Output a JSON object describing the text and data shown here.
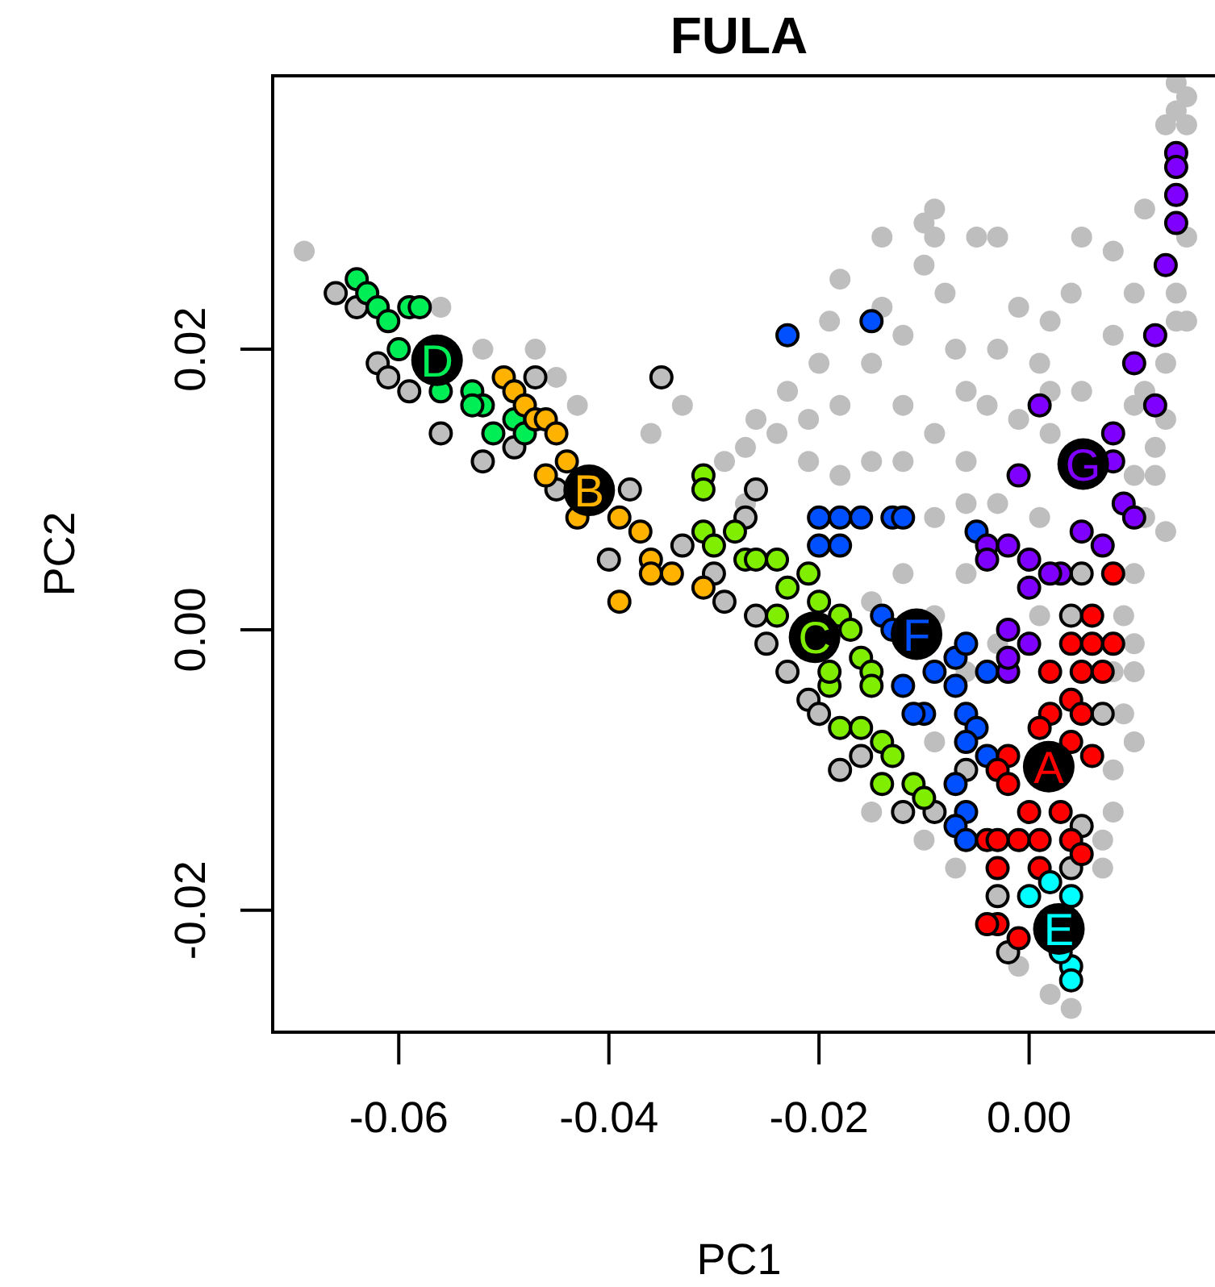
{
  "chart_data": {
    "type": "scatter",
    "title": "FULA",
    "xlabel": "PC1",
    "ylabel": "PC2",
    "xlim": [
      -0.072,
      0.018
    ],
    "ylim": [
      -0.0287,
      0.0395
    ],
    "xticks": [
      -0.06,
      -0.04,
      -0.02,
      {
        "value": 0,
        "label": "0.00"
      }
    ],
    "yticks": [
      -0.02,
      {
        "value": 0,
        "label": "0.00"
      },
      0.02
    ],
    "grid": false,
    "marker": "circle",
    "series": [
      {
        "color": "#bebebe",
        "x": [
          -0.069,
          -0.056,
          -0.052,
          -0.047,
          -0.045,
          -0.043,
          -0.036,
          -0.033,
          -0.027,
          -0.024,
          -0.021,
          -0.018,
          -0.019,
          -0.018,
          -0.014,
          -0.01,
          -0.009,
          -0.01,
          -0.008,
          -0.012,
          -0.007,
          -0.006,
          -0.003,
          -0.001,
          0.001,
          0.002,
          0.004,
          0.005,
          0.008,
          0.01,
          0.011,
          0.013,
          0.014,
          0.015,
          0.015,
          0.015,
          0.013,
          0.012,
          0.011,
          0.01,
          0.01,
          0.009,
          0.008,
          0.007,
          0.004,
          0.002,
          -0.001,
          -0.007,
          -0.01,
          -0.015,
          -0.009,
          -0.006,
          -0.003,
          0.001,
          0.01,
          0.013,
          -0.006,
          -0.009,
          -0.012,
          -0.015,
          -0.027,
          -0.029,
          -0.026,
          -0.023,
          -0.02,
          -0.015,
          -0.012,
          -0.009,
          -0.006,
          -0.003,
          0.001,
          0.01,
          0.002,
          -0.001,
          -0.004,
          -0.012,
          -0.015,
          -0.018,
          -0.009,
          -0.006,
          0.008,
          0.01,
          0.007,
          0.008,
          0.011,
          0.014,
          0.014,
          0.015,
          -0.021,
          -0.014,
          -0.009,
          -0.005,
          -0.003,
          0.002,
          0.005,
          0.008,
          0.012,
          0.014,
          0.01,
          0.009,
          0.013
        ],
        "values": [
          0.027,
          0.023,
          0.02,
          0.02,
          0.018,
          0.016,
          0.014,
          0.016,
          0.013,
          0.014,
          0.015,
          0.016,
          0.022,
          0.025,
          0.028,
          0.029,
          0.03,
          0.026,
          0.024,
          0.021,
          0.02,
          0.017,
          0.02,
          0.023,
          0.019,
          0.022,
          0.024,
          0.028,
          0.027,
          0.024,
          0.03,
          0.036,
          0.037,
          0.036,
          0.028,
          0.022,
          0.019,
          0.013,
          0.008,
          0.004,
          -0.001,
          -0.006,
          -0.01,
          -0.015,
          -0.027,
          -0.026,
          -0.024,
          -0.017,
          -0.015,
          -0.013,
          -0.008,
          -0.003,
          -0.001,
          0.001,
          0.011,
          0.015,
          0.004,
          0.001,
          0.004,
          0.002,
          0.009,
          0.012,
          0.015,
          0.017,
          0.019,
          0.019,
          0.016,
          0.014,
          0.012,
          0.009,
          0.008,
          0.016,
          0.014,
          0.015,
          0.016,
          0.012,
          0.012,
          0.011,
          0.008,
          0.009,
          -0.003,
          -0.008,
          -0.017,
          -0.013,
          0.017,
          0.024,
          0.039,
          0.038,
          0.012,
          0.023,
          0.028,
          0.028,
          0.028,
          0.017,
          0.017,
          0.021,
          0.011,
          0.022,
          -0.003,
          0.001,
          0.007
        ]
      },
      {
        "color": "#bebebe",
        "x": [
          -0.066,
          -0.064,
          -0.062,
          -0.061,
          -0.059,
          -0.056,
          -0.052,
          -0.049,
          -0.047,
          -0.045,
          -0.04,
          -0.035,
          -0.038,
          -0.033,
          -0.03,
          -0.027,
          -0.029,
          -0.026,
          -0.025,
          -0.023,
          -0.021,
          -0.02,
          -0.018,
          -0.016,
          -0.012,
          -0.026,
          -0.006,
          0.007,
          0.004,
          0.005,
          0.005,
          0.004,
          -0.003,
          -0.002,
          -0.009
        ],
        "values": [
          0.024,
          0.023,
          0.019,
          0.018,
          0.017,
          0.014,
          0.012,
          0.013,
          0.018,
          0.01,
          0.005,
          0.018,
          0.01,
          0.006,
          0.004,
          0.008,
          0.002,
          0.001,
          -0.001,
          -0.003,
          -0.005,
          -0.006,
          -0.01,
          -0.009,
          -0.013,
          0.01,
          -0.01,
          -0.006,
          0.001,
          0.004,
          -0.014,
          -0.017,
          -0.019,
          -0.023,
          -0.013
        ]
      },
      {
        "name": "D",
        "color": "#00ee55",
        "x": [
          -0.064,
          -0.063,
          -0.062,
          -0.061,
          -0.059,
          -0.06,
          -0.053,
          -0.052,
          -0.049,
          -0.048,
          -0.058,
          -0.056,
          -0.053,
          -0.051
        ],
        "values": [
          0.025,
          0.024,
          0.023,
          0.022,
          0.023,
          0.02,
          0.017,
          0.016,
          0.015,
          0.014,
          0.023,
          0.017,
          0.016,
          0.014
        ]
      },
      {
        "name": "B",
        "color": "#ffb300",
        "x": [
          -0.05,
          -0.049,
          -0.048,
          -0.047,
          -0.046,
          -0.045,
          -0.044,
          -0.039,
          -0.037,
          -0.036,
          -0.034,
          -0.039,
          -0.031,
          -0.046,
          -0.043,
          -0.036
        ],
        "values": [
          0.018,
          0.017,
          0.016,
          0.015,
          0.015,
          0.014,
          0.012,
          0.008,
          0.007,
          0.005,
          0.004,
          0.002,
          0.003,
          0.011,
          0.008,
          0.004
        ]
      },
      {
        "name": "C",
        "color": "#80ee00",
        "x": [
          -0.031,
          -0.031,
          -0.031,
          -0.03,
          -0.028,
          -0.027,
          -0.026,
          -0.024,
          -0.023,
          -0.021,
          -0.018,
          -0.017,
          -0.016,
          -0.015,
          -0.015,
          -0.019,
          -0.018,
          -0.016,
          -0.014,
          -0.013,
          -0.011,
          -0.01,
          -0.014,
          -0.02,
          -0.024,
          -0.019
        ],
        "values": [
          0.011,
          0.01,
          0.007,
          0.006,
          0.007,
          0.005,
          0.005,
          0.005,
          0.003,
          0.004,
          0.001,
          0,
          -0.002,
          -0.003,
          -0.004,
          -0.004,
          -0.007,
          -0.007,
          -0.008,
          -0.009,
          -0.011,
          -0.012,
          -0.011,
          0.002,
          0.001,
          -0.003
        ]
      },
      {
        "name": "F",
        "color": "#0050ff",
        "x": [
          -0.023,
          -0.015,
          -0.02,
          -0.018,
          -0.016,
          -0.013,
          -0.012,
          -0.02,
          -0.018,
          -0.014,
          -0.013,
          -0.005,
          -0.007,
          -0.006,
          -0.009,
          -0.01,
          -0.007,
          -0.006,
          -0.005,
          -0.006,
          -0.004,
          -0.007,
          -0.006,
          -0.007,
          -0.006,
          -0.004,
          -0.012,
          -0.011
        ],
        "values": [
          0.021,
          0.022,
          0.008,
          0.008,
          0.008,
          0.008,
          0.008,
          0.006,
          0.006,
          0.001,
          0,
          0.007,
          -0.002,
          -0.001,
          -0.003,
          -0.006,
          -0.004,
          -0.006,
          -0.007,
          -0.008,
          -0.009,
          -0.011,
          -0.013,
          -0.014,
          -0.015,
          -0.003,
          -0.004,
          -0.006
        ]
      },
      {
        "name": "G",
        "color": "#8000ff",
        "x": [
          0.014,
          0.014,
          0.014,
          0.014,
          0.013,
          0.012,
          0.01,
          0.001,
          0.012,
          0.008,
          -0.001,
          0.008,
          0.009,
          0.01,
          0.005,
          0.007,
          -0.004,
          -0.002,
          -0.004,
          0,
          0.003,
          0.002,
          0,
          -0.002,
          0,
          -0.002,
          -0.002
        ],
        "values": [
          0.034,
          0.033,
          0.031,
          0.029,
          0.026,
          0.021,
          0.019,
          0.016,
          0.016,
          0.014,
          0.011,
          0.012,
          0.009,
          0.008,
          0.007,
          0.006,
          0.006,
          0.006,
          0.005,
          0.005,
          0.004,
          0.004,
          0.003,
          0,
          -0.001,
          -0.003,
          -0.002
        ]
      },
      {
        "name": "A",
        "color": "#ff0000",
        "x": [
          0.008,
          0.006,
          0.004,
          0.006,
          0.008,
          0.002,
          0.005,
          0.007,
          0.004,
          0.002,
          0.005,
          0.004,
          0.001,
          -0.002,
          0.006,
          -0.003,
          -0.002,
          -0.004,
          -0.001,
          0.001,
          -0.003,
          0.004,
          0.005,
          -0.003,
          0.001,
          -0.003,
          -0.004,
          -0.001,
          0.003,
          0
        ],
        "values": [
          0.004,
          0.001,
          -0.001,
          -0.001,
          -0.001,
          -0.003,
          -0.003,
          -0.003,
          -0.005,
          -0.006,
          -0.006,
          -0.008,
          -0.007,
          -0.009,
          -0.009,
          -0.01,
          -0.011,
          -0.015,
          -0.015,
          -0.015,
          -0.015,
          -0.015,
          -0.016,
          -0.017,
          -0.017,
          -0.021,
          -0.021,
          -0.022,
          -0.013,
          -0.013
        ]
      },
      {
        "name": "E",
        "color": "#00ffff",
        "x": [
          0.002,
          0.004,
          0,
          0.004,
          0.004,
          0.003
        ],
        "values": [
          -0.018,
          -0.019,
          -0.019,
          -0.024,
          -0.025,
          -0.023
        ]
      }
    ]
  }
}
